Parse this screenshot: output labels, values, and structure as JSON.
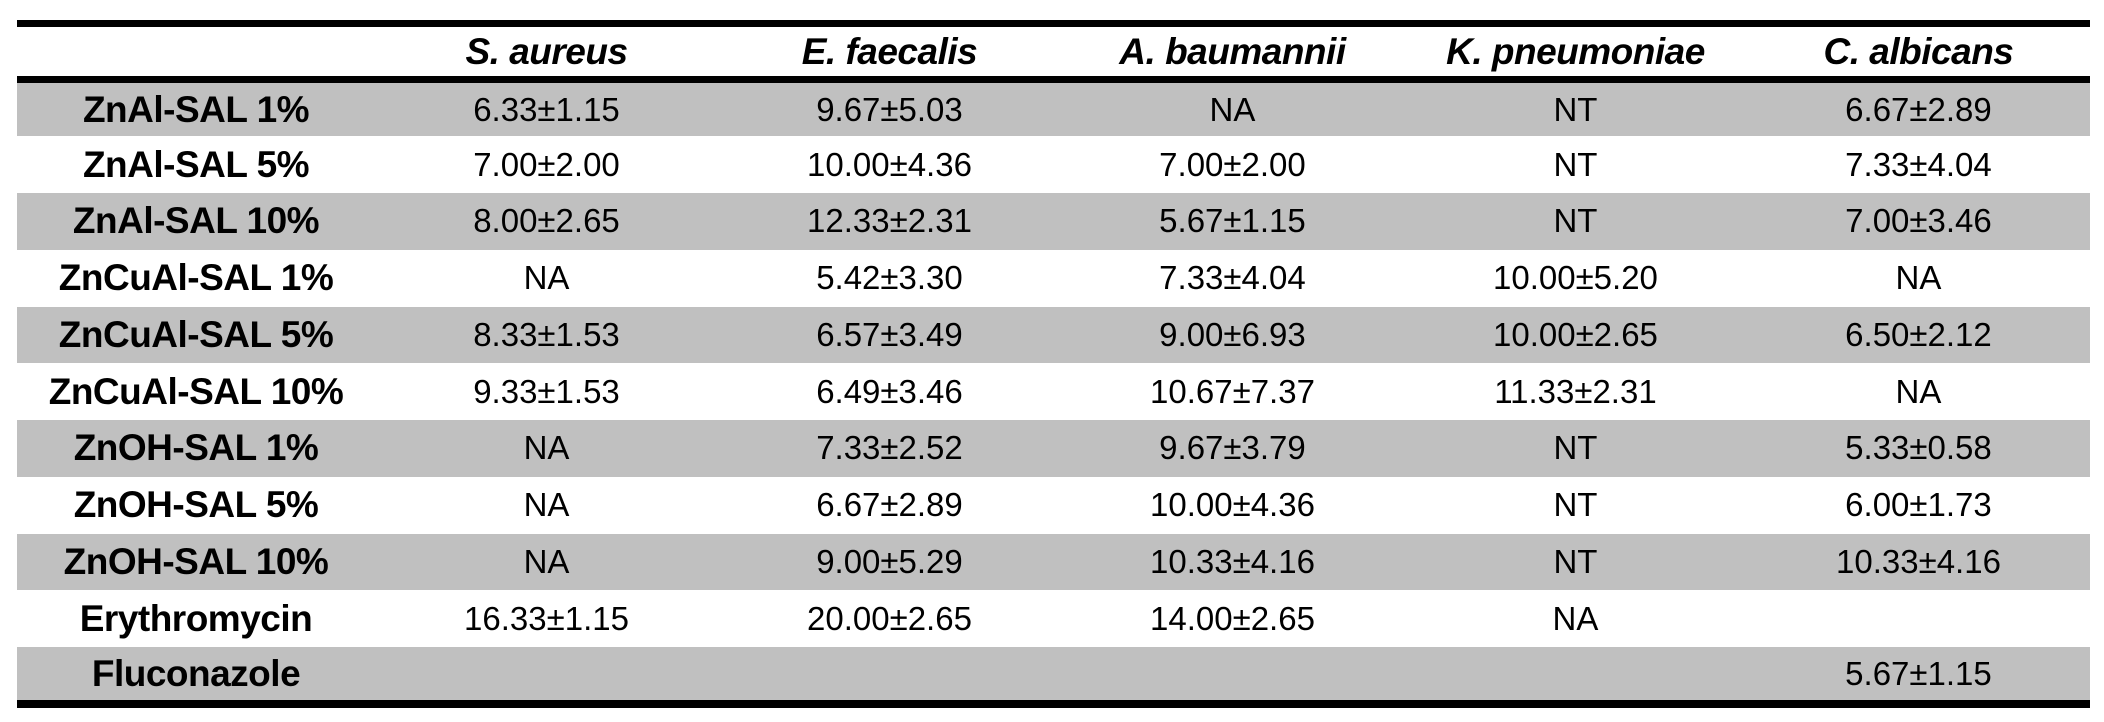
{
  "chart_data": {
    "type": "table",
    "title": "",
    "columns": [
      "",
      "S. aureus",
      "E. faecalis",
      "A. baumannii",
      "K. pneumoniae",
      "C. albicans"
    ],
    "rows": [
      {
        "label": "ZnAl-SAL 1%",
        "cells": [
          "6.33±1.15",
          "9.67±5.03",
          "NA",
          "NT",
          "6.67±2.89"
        ]
      },
      {
        "label": "ZnAl-SAL 5%",
        "cells": [
          "7.00±2.00",
          "10.00±4.36",
          "7.00±2.00",
          "NT",
          "7.33±4.04"
        ]
      },
      {
        "label": "ZnAl-SAL 10%",
        "cells": [
          "8.00±2.65",
          "12.33±2.31",
          "5.67±1.15",
          "NT",
          "7.00±3.46"
        ]
      },
      {
        "label": "ZnCuAl-SAL 1%",
        "cells": [
          "NA",
          "5.42±3.30",
          "7.33±4.04",
          "10.00±5.20",
          "NA"
        ]
      },
      {
        "label": "ZnCuAl-SAL 5%",
        "cells": [
          "8.33±1.53",
          "6.57±3.49",
          "9.00±6.93",
          "10.00±2.65",
          "6.50±2.12"
        ]
      },
      {
        "label": "ZnCuAl-SAL 10%",
        "cells": [
          "9.33±1.53",
          "6.49±3.46",
          "10.67±7.37",
          "11.33±2.31",
          "NA"
        ]
      },
      {
        "label": "ZnOH-SAL 1%",
        "cells": [
          "NA",
          "7.33±2.52",
          "9.67±3.79",
          "NT",
          "5.33±0.58"
        ]
      },
      {
        "label": "ZnOH-SAL 5%",
        "cells": [
          "NA",
          "6.67±2.89",
          "10.00±4.36",
          "NT",
          "6.00±1.73"
        ]
      },
      {
        "label": "ZnOH-SAL 10%",
        "cells": [
          "NA",
          "9.00±5.29",
          "10.33±4.16",
          "NT",
          "10.33±4.16"
        ]
      },
      {
        "label": "Erythromycin",
        "cells": [
          "16.33±1.15",
          "20.00±2.65",
          "14.00±2.65",
          "NA",
          ""
        ]
      },
      {
        "label": "Fluconazole",
        "cells": [
          "",
          "",
          "",
          "",
          "5.67±1.15"
        ]
      }
    ],
    "colors": {
      "stripe": "#c0c0c0",
      "border": "#000000",
      "text": "#000000"
    },
    "layout": {
      "header_style": "bold-italic",
      "row_label_style": "bold",
      "stripe_pattern": "odd-rows-gray"
    }
  }
}
